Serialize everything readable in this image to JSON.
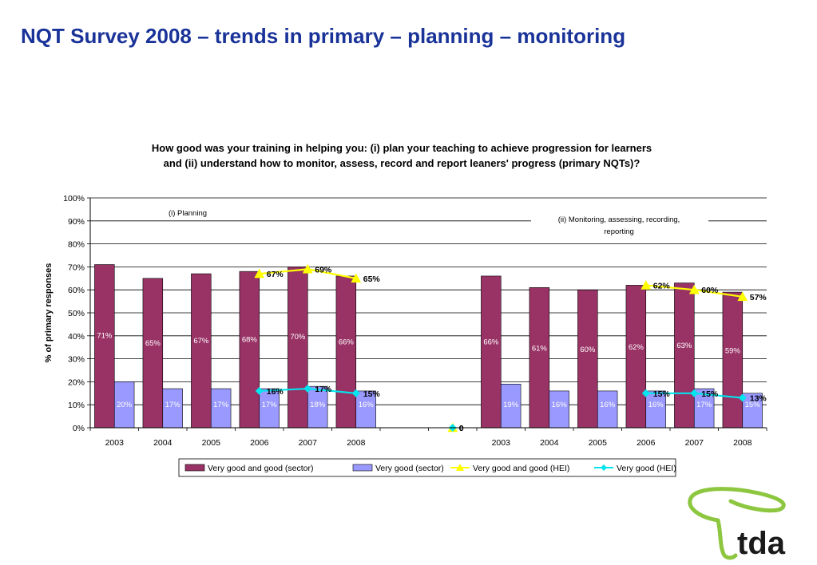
{
  "slide": {
    "title": "NQT Survey 2008 – trends in primary – planning – monitoring"
  },
  "logo": {
    "text": "tda",
    "color": "#8dc63f",
    "text_color": "#1a1a1a"
  },
  "chart_data": {
    "type": "bar",
    "title_line1": "How good was your training in helping you: (i) plan your teaching to achieve progression for learners",
    "title_line2": "and (ii) understand how to monitor, assess, record and report leaners' progress (primary NQTs)?",
    "ylabel": "% of primary responses",
    "ylim": [
      0,
      100
    ],
    "yticks": [
      "0%",
      "10%",
      "20%",
      "30%",
      "40%",
      "50%",
      "60%",
      "70%",
      "80%",
      "90%",
      "100%"
    ],
    "grid": true,
    "legend_position": "bottom",
    "panel_labels": [
      "(i) Planning",
      "(ii) Monitoring, assessing, recording,",
      "reporting"
    ],
    "categories": [
      "2003",
      "2004",
      "2005",
      "2006",
      "2007",
      "2008",
      "",
      "",
      "2003",
      "2004",
      "2005",
      "2006",
      "2007",
      "2008"
    ],
    "series": [
      {
        "name": "Very good and good (sector)",
        "kind": "bar",
        "color": "#993366",
        "values": [
          71,
          65,
          67,
          68,
          70,
          66,
          null,
          null,
          66,
          61,
          60,
          62,
          63,
          59
        ],
        "labels": [
          "71%",
          "65%",
          "67%",
          "68%",
          "70%",
          "66%",
          "",
          "",
          "66%",
          "61%",
          "60%",
          "62%",
          "63%",
          "59%"
        ]
      },
      {
        "name": "Very good (sector)",
        "kind": "bar",
        "color": "#9999ff",
        "values": [
          20,
          17,
          17,
          17,
          18,
          16,
          null,
          null,
          19,
          16,
          16,
          16,
          17,
          15
        ],
        "labels": [
          "20%",
          "17%",
          "17%",
          "17%",
          "18%",
          "16%",
          "",
          "",
          "19%",
          "16%",
          "16%",
          "16%",
          "17%",
          "15%"
        ]
      },
      {
        "name": "Very good and good (HEI)",
        "kind": "line",
        "color": "#ffff00",
        "values": [
          null,
          null,
          null,
          67,
          69,
          65,
          null,
          0,
          null,
          null,
          null,
          62,
          60,
          57
        ],
        "labels": [
          "",
          "",
          "",
          "67%",
          "69%",
          "65%",
          "",
          "0",
          "",
          "",
          "",
          "62%",
          "60%",
          "57%"
        ]
      },
      {
        "name": "Very good (HEI)",
        "kind": "line",
        "color": "#00e5ee",
        "values": [
          null,
          null,
          null,
          16,
          17,
          15,
          null,
          0,
          null,
          null,
          null,
          15,
          15,
          13
        ],
        "labels": [
          "",
          "",
          "",
          "16%",
          "17%",
          "15%",
          "",
          "0",
          "",
          "",
          "",
          "15%",
          "15%",
          "13%"
        ]
      }
    ]
  }
}
